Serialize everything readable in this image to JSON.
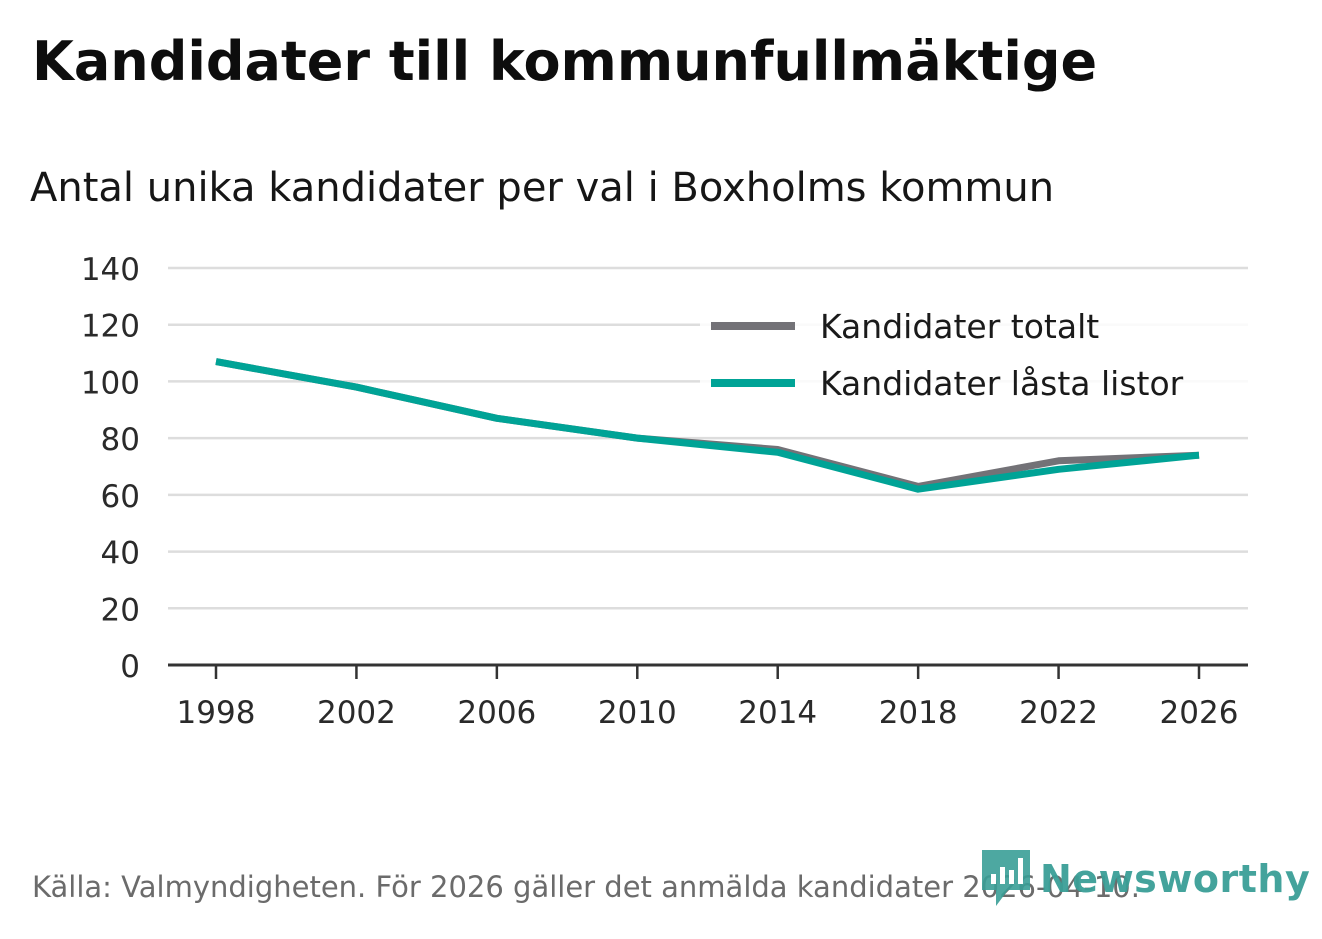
{
  "header": {
    "title": "Kandidater till kommunfullmäktige",
    "subtitle": "Antal unika kandidater per val i Boxholms kommun"
  },
  "footer": {
    "source": "Källa: Valmyndigheten. För 2026 gäller det anmälda kandidater 2026-04-10.",
    "brand": "Newsworthy"
  },
  "colors": {
    "total": "#737277",
    "locked": "#00a396",
    "grid": "#dddddd",
    "axis": "#333333",
    "brand": "#3a9f97"
  },
  "chart_data": {
    "type": "line",
    "title": "Kandidater till kommunfullmäktige",
    "subtitle": "Antal unika kandidater per val i Boxholms kommun",
    "xlabel": "",
    "ylabel": "",
    "x": [
      1998,
      2002,
      2006,
      2010,
      2014,
      2018,
      2022,
      2026
    ],
    "x_tick_labels": [
      "1998",
      "2002",
      "2006",
      "2010",
      "2014",
      "2018",
      "2022",
      "2026"
    ],
    "y_ticks": [
      0,
      20,
      40,
      60,
      80,
      100,
      120,
      140
    ],
    "y_tick_labels": [
      "0",
      "20",
      "40",
      "60",
      "80",
      "100",
      "120",
      "140"
    ],
    "ylim": [
      0,
      140
    ],
    "xlim": [
      1997,
      2028
    ],
    "grid": true,
    "legend_position": "top-right",
    "series": [
      {
        "name": "Kandidater totalt",
        "color": "#737277",
        "values": [
          107,
          98,
          87,
          80,
          76,
          63,
          72,
          74
        ]
      },
      {
        "name": "Kandidater låsta listor",
        "color": "#00a396",
        "values": [
          107,
          98,
          87,
          80,
          75,
          62,
          69,
          74
        ]
      }
    ]
  }
}
